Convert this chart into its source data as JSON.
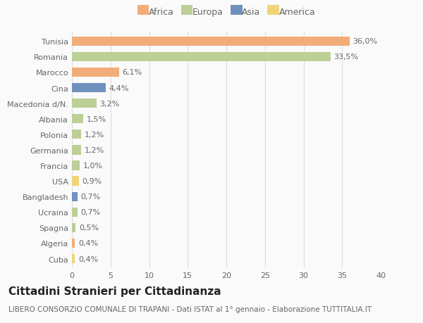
{
  "countries": [
    "Tunisia",
    "Romania",
    "Marocco",
    "Cina",
    "Macedonia d/N.",
    "Albania",
    "Polonia",
    "Germania",
    "Francia",
    "USA",
    "Bangladesh",
    "Ucraina",
    "Spagna",
    "Algeria",
    "Cuba"
  ],
  "values": [
    36.0,
    33.5,
    6.1,
    4.4,
    3.2,
    1.5,
    1.2,
    1.2,
    1.0,
    0.9,
    0.7,
    0.7,
    0.5,
    0.4,
    0.4
  ],
  "labels": [
    "36,0%",
    "33,5%",
    "6,1%",
    "4,4%",
    "3,2%",
    "1,5%",
    "1,2%",
    "1,2%",
    "1,0%",
    "0,9%",
    "0,7%",
    "0,7%",
    "0,5%",
    "0,4%",
    "0,4%"
  ],
  "continents": [
    "Africa",
    "Europa",
    "Africa",
    "Asia",
    "Europa",
    "Europa",
    "Europa",
    "Europa",
    "Europa",
    "America",
    "Asia",
    "Europa",
    "Europa",
    "Africa",
    "America"
  ],
  "continent_colors": {
    "Africa": "#F2AC78",
    "Europa": "#BCCF96",
    "Asia": "#7090BE",
    "America": "#F0D478"
  },
  "legend_order": [
    "Africa",
    "Europa",
    "Asia",
    "America"
  ],
  "xlim": [
    0,
    40
  ],
  "xticks": [
    0,
    5,
    10,
    15,
    20,
    25,
    30,
    35,
    40
  ],
  "title": "Cittadini Stranieri per Cittadinanza",
  "subtitle": "LIBERO CONSORZIO COMUNALE DI TRAPANI - Dati ISTAT al 1° gennaio - Elaborazione TUTTITALIA.IT",
  "background_color": "#fafafa",
  "grid_color": "#dddddd",
  "bar_height": 0.6,
  "label_fontsize": 8,
  "tick_fontsize": 8,
  "title_fontsize": 11,
  "subtitle_fontsize": 7.5,
  "legend_fontsize": 9
}
